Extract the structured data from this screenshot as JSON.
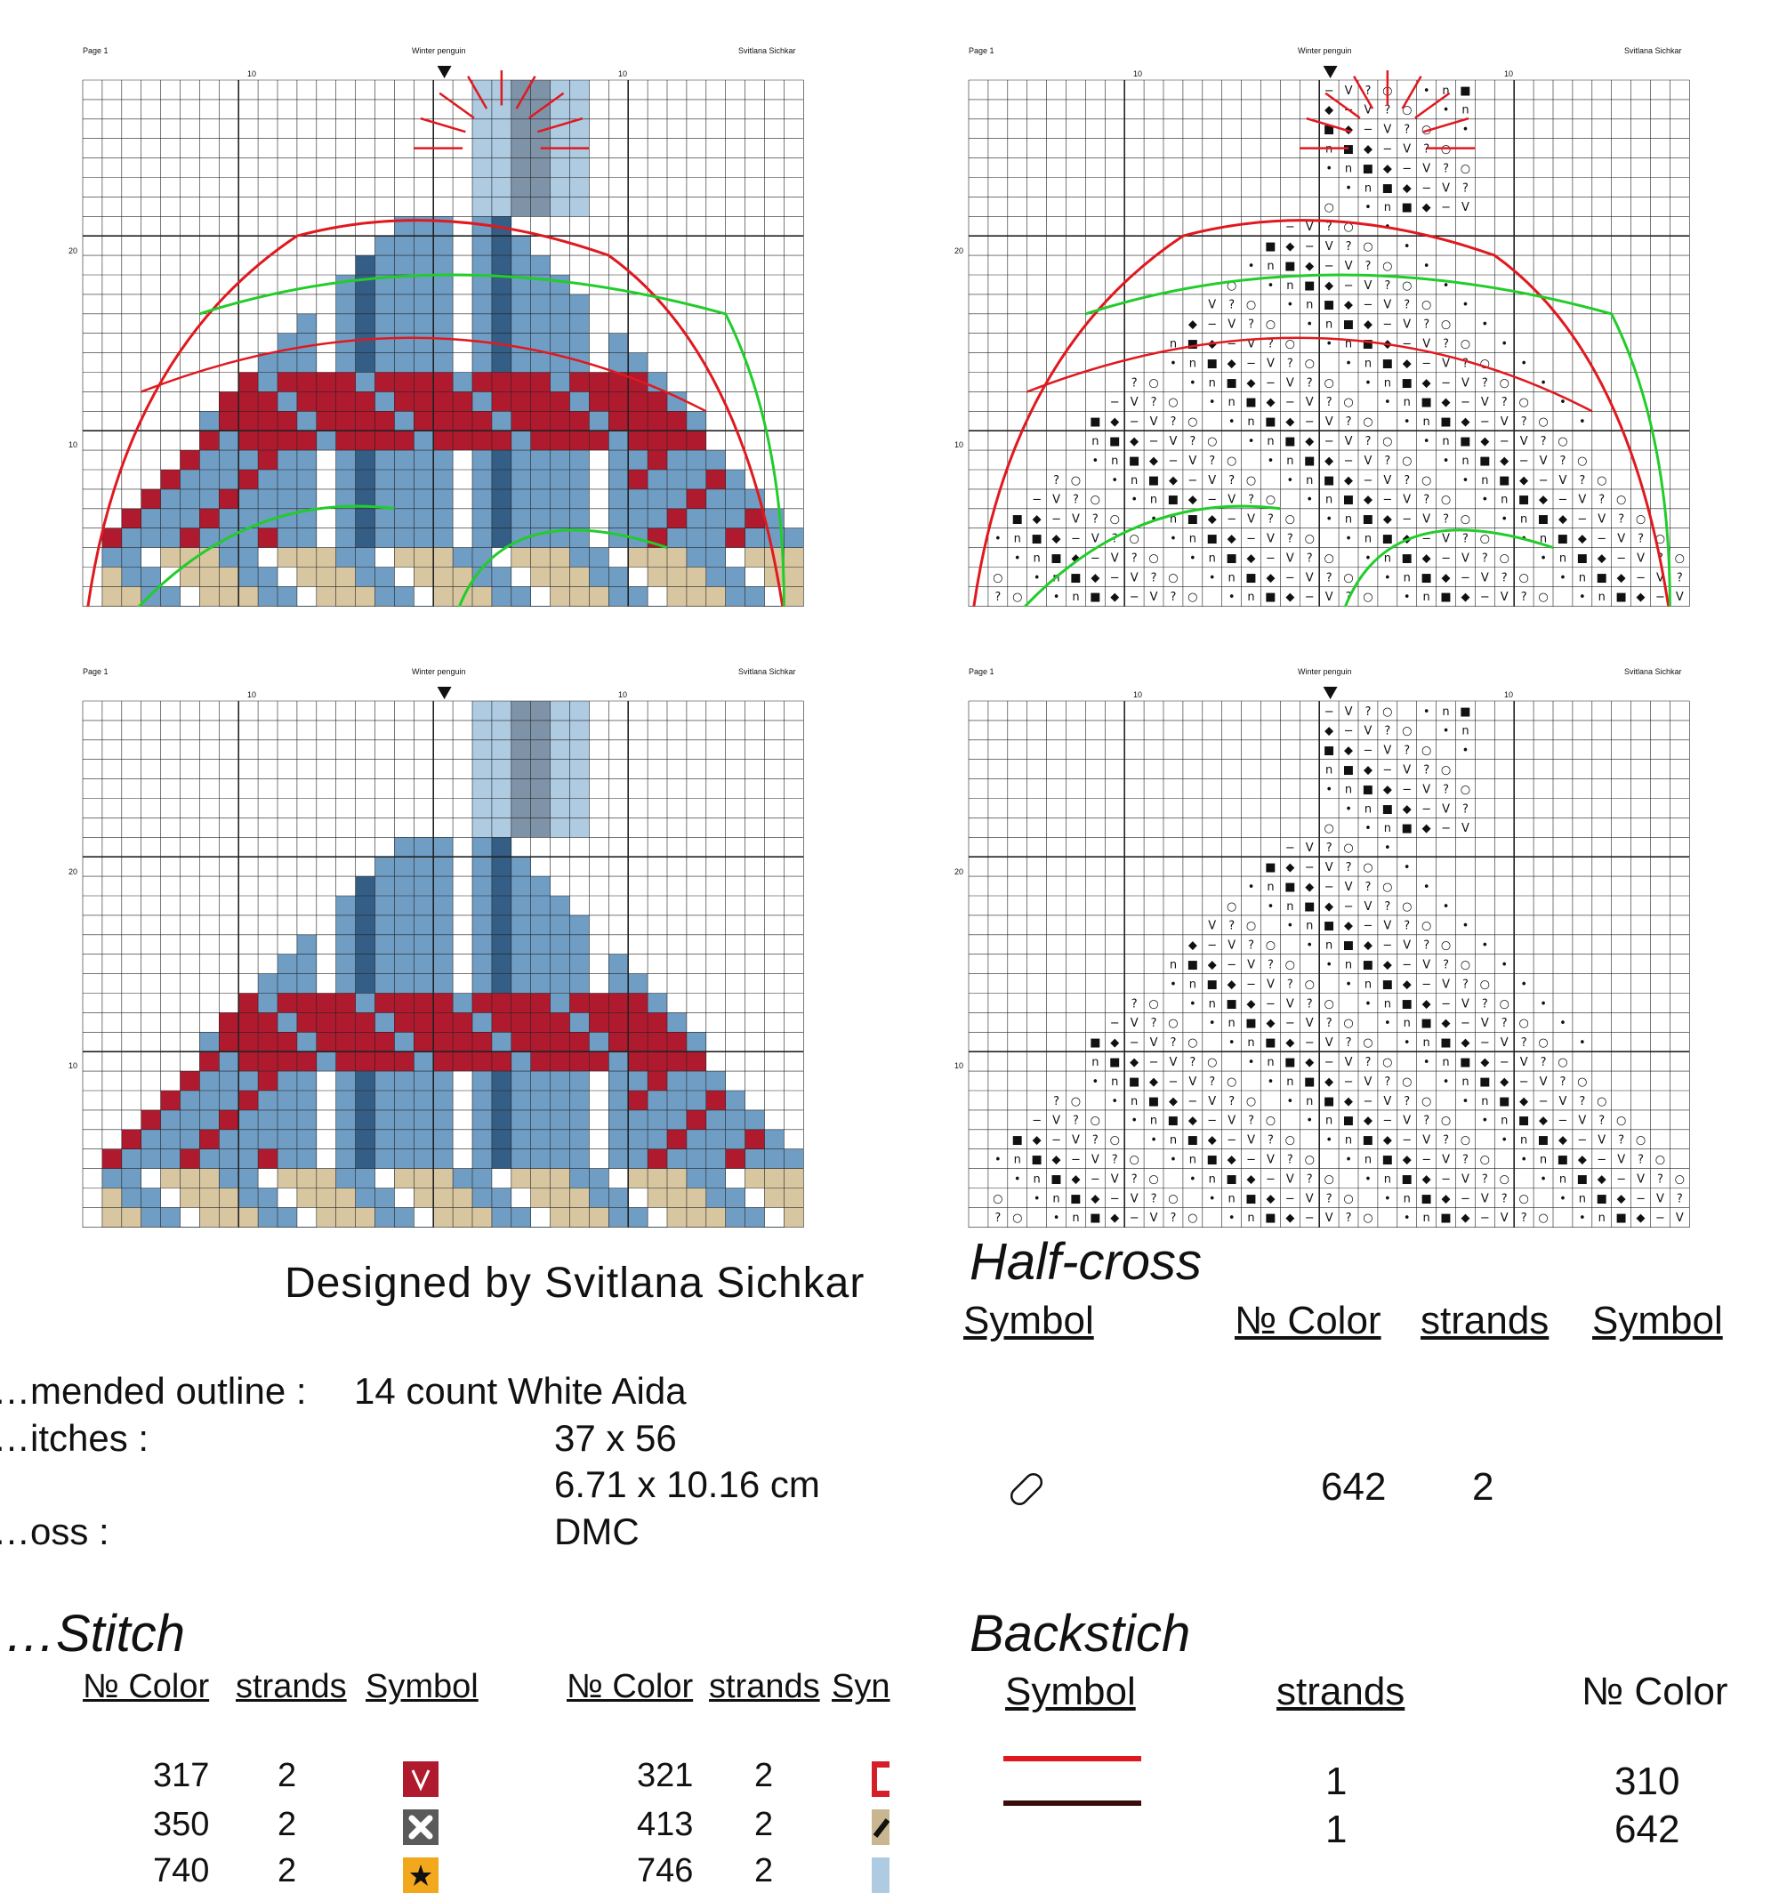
{
  "chart_pages": [
    {
      "id": "color-with-lines",
      "left_label": "Page 1",
      "center_label": "Winter penguin",
      "right_label": "Svitlana Sichkar",
      "tick_a": "10",
      "tick_b": "10",
      "row_20": "20",
      "row_10": "10"
    },
    {
      "id": "symbols-with-lines",
      "left_label": "Page 1",
      "center_label": "Winter penguin",
      "right_label": "Svitlana Sichkar",
      "tick_a": "10",
      "tick_b": "10",
      "row_20": "20",
      "row_10": "10"
    },
    {
      "id": "color-plain",
      "left_label": "Page 1",
      "center_label": "Winter penguin",
      "right_label": "Svitlana Sichkar",
      "tick_a": "10",
      "tick_b": "10",
      "row_20": "20",
      "row_10": "10"
    },
    {
      "id": "symbols-plain",
      "left_label": "Page 1",
      "center_label": "Winter penguin",
      "right_label": "Svitlana Sichkar",
      "tick_a": "10",
      "tick_b": "10",
      "row_20": "20",
      "row_10": "10"
    }
  ],
  "colors": {
    "red": "#b01a2e",
    "light_blue": "#6f9dc4",
    "dark_blue": "#355e86",
    "beige": "#d8c6a0",
    "pale_blue": "#aecbe2",
    "grey_blue": "#7f93a8",
    "line_red": "#e0191f",
    "line_green": "#22cc2a",
    "line_brown": "#3a0d0d"
  },
  "designer": "Designed by Svitlana Sichkar",
  "info": {
    "fabric_label": "…mended outline :",
    "fabric_value": "14 count White Aida",
    "stitches_label": "…itches :",
    "stitches_value": "37 x 56",
    "size_value": "6.71 x 10.16 cm",
    "floss_label": "…oss :",
    "floss_value": "DMC"
  },
  "half_cross": {
    "title": "Half-cross",
    "headers": [
      "Symbol",
      "№ Color",
      "strands",
      "Symbol"
    ],
    "rows": [
      {
        "symbol": "pill-icon",
        "color": "642",
        "strands": "2"
      }
    ]
  },
  "cross_stitch": {
    "title": "…Stitch",
    "headers_left": [
      "№ Color",
      "strands",
      "Symbol"
    ],
    "headers_right": [
      "№ Color",
      "strands",
      "Syn"
    ],
    "rows_left": [
      {
        "color": "317",
        "strands": "2",
        "symbol": "v-icon"
      },
      {
        "color": "350",
        "strands": "2",
        "symbol": "x-icon"
      },
      {
        "color": "740",
        "strands": "2",
        "symbol": "star-icon"
      }
    ],
    "rows_right": [
      {
        "color": "321",
        "strands": "2",
        "symbol": "square-outline-icon"
      },
      {
        "color": "413",
        "strands": "2",
        "symbol": "slash-icon"
      },
      {
        "color": "746",
        "strands": "2",
        "symbol": "light-icon"
      }
    ]
  },
  "backstitch": {
    "title": "Backstich",
    "headers": [
      "Symbol",
      "strands",
      "№ Color"
    ],
    "rows": [
      {
        "line_color": "#e0191f",
        "strands": "1",
        "color": "310"
      },
      {
        "line_color": "#3a0d0d",
        "strands": "1",
        "color": "642"
      }
    ]
  }
}
